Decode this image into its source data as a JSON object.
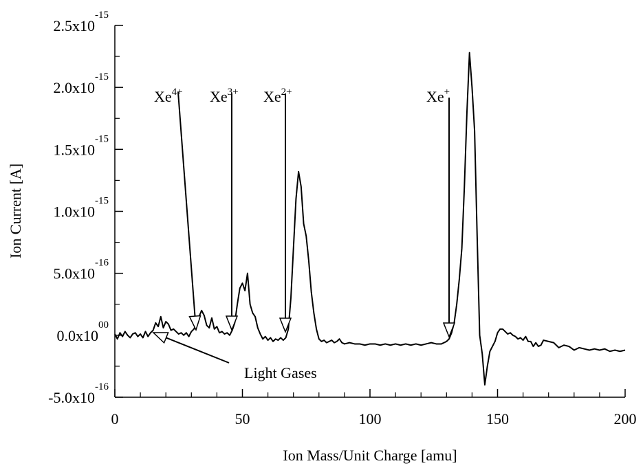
{
  "chart_data": {
    "type": "line",
    "xlabel": "Ion Mass/Unit Charge [amu]",
    "ylabel": "Ion Current [A]",
    "xlim": [
      0,
      200
    ],
    "xticks": [
      0,
      50,
      100,
      150,
      200
    ],
    "xminorticks": [
      10,
      20,
      30,
      40,
      60,
      70,
      80,
      90,
      110,
      120,
      130,
      140,
      160,
      170,
      180,
      190
    ],
    "ylim": [
      -5e-16,
      2.5e-15
    ],
    "yticks": [
      {
        "value": -5e-16,
        "label": "-5.0x10",
        "exponent": "-16"
      },
      {
        "value": 0,
        "label": "0.0x10",
        "exponent": "00"
      },
      {
        "value": 5e-16,
        "label": "5.0x10",
        "exponent": "-16"
      },
      {
        "value": 1e-15,
        "label": "1.0x10",
        "exponent": "-15"
      },
      {
        "value": 1.5e-15,
        "label": "1.5x10",
        "exponent": "-15"
      },
      {
        "value": 2e-15,
        "label": "2.0x10",
        "exponent": "-15"
      },
      {
        "value": 2.5e-15,
        "label": "2.5x10",
        "exponent": "-15"
      }
    ],
    "yminorticks": [
      -2.5e-16,
      2.5e-16,
      7.5e-16,
      1.25e-15,
      1.75e-15,
      2.25e-15
    ],
    "grid": false,
    "series": [
      {
        "color": "#000000",
        "x": [
          0,
          1,
          2,
          3,
          4,
          5,
          6,
          7,
          8,
          9,
          10,
          11,
          12,
          13,
          14,
          15,
          16,
          17,
          18,
          19,
          20,
          21,
          22,
          23,
          24,
          25,
          26,
          27,
          28,
          29,
          30,
          31,
          32,
          33,
          34,
          35,
          36,
          37,
          38,
          39,
          40,
          41,
          42,
          43,
          44,
          45,
          46,
          47,
          48,
          49,
          50,
          51,
          52,
          53,
          54,
          55,
          56,
          57,
          58,
          59,
          60,
          61,
          62,
          63,
          64,
          65,
          66,
          67,
          68,
          69,
          70,
          71,
          72,
          73,
          74,
          75,
          76,
          77,
          78,
          79,
          80,
          81,
          82,
          83,
          84,
          85,
          86,
          87,
          88,
          89,
          90,
          92,
          94,
          96,
          98,
          100,
          102,
          104,
          106,
          108,
          110,
          112,
          114,
          116,
          118,
          120,
          122,
          124,
          126,
          128,
          130,
          131,
          132,
          133,
          134,
          135,
          136,
          137,
          138,
          139,
          140,
          141,
          142,
          143,
          144,
          145,
          146,
          147,
          148,
          149,
          150,
          151,
          152,
          153,
          154,
          155,
          156,
          157,
          158,
          159,
          160,
          161,
          162,
          163,
          164,
          165,
          166,
          167,
          168,
          170,
          172,
          174,
          176,
          178,
          180,
          182,
          184,
          186,
          188,
          190,
          192,
          194,
          196,
          198,
          200
        ],
        "values": [
          1e-17,
          -3e-17,
          2e-17,
          -1e-17,
          3e-17,
          0,
          -2e-17,
          1e-17,
          2e-17,
          -1e-17,
          1e-17,
          -2e-17,
          3e-17,
          -1e-17,
          2e-17,
          4e-17,
          1e-16,
          7e-17,
          1.5e-16,
          6e-17,
          1.1e-16,
          9e-17,
          4e-17,
          5e-17,
          3e-17,
          1e-17,
          2e-17,
          0,
          2e-17,
          -1e-17,
          3e-17,
          5e-17,
          1e-16,
          1.5e-16,
          2e-16,
          1.6e-16,
          8e-17,
          6e-17,
          1.4e-16,
          5e-17,
          7e-17,
          2e-17,
          3e-17,
          1e-17,
          2e-17,
          0,
          4e-17,
          1e-16,
          2.5e-16,
          3.8e-16,
          4.2e-16,
          3.6e-16,
          5e-16,
          2.5e-16,
          1.8e-16,
          1.5e-16,
          6e-17,
          1e-17,
          -3e-17,
          -1e-17,
          -4e-17,
          -2e-17,
          -5e-17,
          -3e-17,
          -4e-17,
          -2e-17,
          -4e-17,
          -2e-17,
          5e-17,
          3e-16,
          7e-16,
          1.1e-15,
          1.32e-15,
          1.2e-15,
          9e-16,
          8e-16,
          6e-16,
          3.5e-16,
          1.8e-16,
          5e-17,
          -3e-17,
          -5e-17,
          -4e-17,
          -6e-17,
          -5e-17,
          -4e-17,
          -6e-17,
          -5e-17,
          -3e-17,
          -6e-17,
          -7e-17,
          -6e-17,
          -7e-17,
          -7e-17,
          -8e-17,
          -7e-17,
          -7e-17,
          -8e-17,
          -7e-17,
          -8e-17,
          -7e-17,
          -8e-17,
          -7e-17,
          -8e-17,
          -7e-17,
          -8e-17,
          -7e-17,
          -6e-17,
          -7e-17,
          -7e-17,
          -5e-17,
          -3e-17,
          2e-17,
          1e-16,
          2.5e-16,
          4.5e-16,
          7e-16,
          1.2e-15,
          1.8e-15,
          2.28e-15,
          2e-15,
          1.65e-15,
          8e-16,
          0,
          -1.5e-16,
          -4e-16,
          -2.5e-16,
          -1.3e-16,
          -9e-17,
          -5e-17,
          2e-17,
          5e-17,
          5e-17,
          3e-17,
          1e-17,
          2e-17,
          0,
          -1e-17,
          -3e-17,
          -2e-17,
          -4e-17,
          -1e-17,
          -5e-17,
          -5e-17,
          -9e-17,
          -6e-17,
          -9e-17,
          -8e-17,
          -4e-17,
          -5e-17,
          -6e-17,
          -1e-16,
          -8e-17,
          -9e-17,
          -1.2e-16,
          -1e-16,
          -1.1e-16,
          -1.2e-16,
          -1.1e-16,
          -1.2e-16,
          -1.1e-16,
          -1.3e-16,
          -1.2e-16,
          -1.3e-16,
          -1.2e-16
        ]
      }
    ],
    "annotations": [
      {
        "text": "Xe",
        "superscript": "4+"
      },
      {
        "text": "Xe",
        "superscript": "3+"
      },
      {
        "text": "Xe",
        "superscript": "2+"
      },
      {
        "text": "Xe",
        "superscript": "+"
      },
      {
        "text": "Light Gases"
      }
    ]
  }
}
